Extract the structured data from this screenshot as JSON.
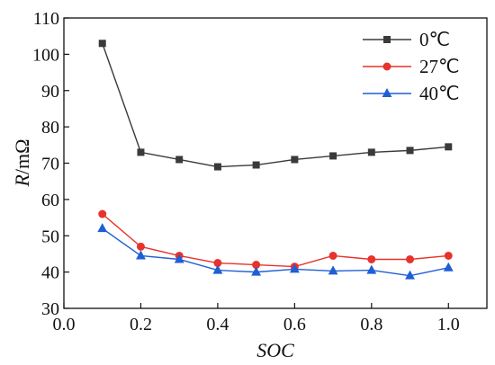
{
  "chart_data": {
    "type": "line",
    "xlabel": "SOC",
    "ylabel": {
      "italic": "R",
      "rest": "/mΩ"
    },
    "xlim": [
      0.0,
      1.1
    ],
    "ylim": [
      30,
      110
    ],
    "xticks": [
      0.0,
      0.2,
      0.4,
      0.6,
      0.8,
      1.0
    ],
    "xtick_labels": [
      "0.0",
      "0.2",
      "0.4",
      "0.6",
      "0.8",
      "1.0"
    ],
    "yticks": [
      30,
      40,
      50,
      60,
      70,
      80,
      90,
      100,
      110
    ],
    "ytick_labels": [
      "30",
      "40",
      "50",
      "60",
      "70",
      "80",
      "90",
      "100",
      "110"
    ],
    "grid": false,
    "legend_position": "top-right",
    "x": [
      0.1,
      0.2,
      0.3,
      0.4,
      0.5,
      0.6,
      0.7,
      0.8,
      0.9,
      1.0
    ],
    "series": [
      {
        "name": "0℃",
        "color": "#3a3a3a",
        "marker": "square",
        "values": [
          103,
          73,
          71,
          69,
          69.5,
          71,
          72,
          73,
          73.5,
          74.5
        ]
      },
      {
        "name": "27℃",
        "color": "#e8322c",
        "marker": "circle",
        "values": [
          56,
          47,
          44.5,
          42.5,
          42,
          41.5,
          44.5,
          43.5,
          43.5,
          44.5
        ]
      },
      {
        "name": "40℃",
        "color": "#1f5fd6",
        "marker": "triangle",
        "values": [
          52,
          44.5,
          43.5,
          40.5,
          40,
          40.8,
          40.3,
          40.5,
          39,
          41.2
        ]
      }
    ]
  }
}
